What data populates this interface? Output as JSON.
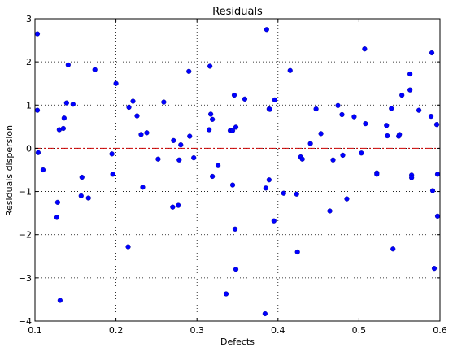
{
  "chart_data": {
    "type": "scatter",
    "title": "Residuals",
    "xlabel": "Defects",
    "ylabel": "Residuals dispersion",
    "xlim": [
      0.1,
      0.6
    ],
    "ylim": [
      -4,
      3
    ],
    "xticks": [
      0.1,
      0.2,
      0.3,
      0.4,
      0.5,
      0.6
    ],
    "xtick_labels": [
      "0.1",
      "0.2",
      "0.3",
      "0.4",
      "0.5",
      "0.6"
    ],
    "yticks": [
      -4,
      -3,
      -2,
      -1,
      0,
      1,
      2,
      3
    ],
    "ytick_labels": [
      "−4",
      "−3",
      "−2",
      "−1",
      "0",
      "1",
      "2",
      "3"
    ],
    "grid": true,
    "reference_line": {
      "y": 0,
      "style": "dash-dot",
      "color": "#cc0000"
    },
    "marker_color": "#0000ff",
    "series": [
      {
        "x": [
          0.103,
          0.103,
          0.104,
          0.11,
          0.127,
          0.128,
          0.13,
          0.131,
          0.135,
          0.136,
          0.139,
          0.141,
          0.147,
          0.157,
          0.158,
          0.166,
          0.174,
          0.195,
          0.196,
          0.2,
          0.215,
          0.216,
          0.221,
          0.226,
          0.231,
          0.233,
          0.238,
          0.252,
          0.259,
          0.27,
          0.271,
          0.277,
          0.278,
          0.28,
          0.29,
          0.291,
          0.296,
          0.315,
          0.316,
          0.317,
          0.319,
          0.319,
          0.326,
          0.336,
          0.341,
          0.344,
          0.344,
          0.346,
          0.347,
          0.348,
          0.348,
          0.359,
          0.384,
          0.385,
          0.386,
          0.389,
          0.389,
          0.39,
          0.395,
          0.396,
          0.407,
          0.415,
          0.423,
          0.424,
          0.428,
          0.43,
          0.44,
          0.447,
          0.453,
          0.464,
          0.468,
          0.474,
          0.479,
          0.48,
          0.485,
          0.494,
          0.503,
          0.507,
          0.508,
          0.522,
          0.522,
          0.534,
          0.535,
          0.54,
          0.542,
          0.549,
          0.55,
          0.553,
          0.563,
          0.563,
          0.565,
          0.565,
          0.574,
          0.589,
          0.59,
          0.591,
          0.593,
          0.596,
          0.597,
          0.597
        ],
        "y": [
          2.65,
          0.88,
          -0.1,
          -0.5,
          -1.6,
          -1.25,
          0.43,
          -3.52,
          0.46,
          0.7,
          1.05,
          1.93,
          1.02,
          -1.1,
          -0.67,
          -1.15,
          1.82,
          -0.13,
          -0.6,
          1.5,
          -2.28,
          0.95,
          1.09,
          0.75,
          0.32,
          -0.9,
          0.36,
          -0.25,
          1.07,
          -1.36,
          0.18,
          -1.32,
          -0.27,
          0.08,
          1.78,
          0.28,
          -0.22,
          0.43,
          1.9,
          0.79,
          0.67,
          -0.65,
          -0.4,
          -3.37,
          0.41,
          -0.85,
          0.41,
          1.23,
          -1.87,
          -2.8,
          0.49,
          1.14,
          -3.83,
          -0.92,
          2.75,
          0.91,
          -0.73,
          0.9,
          -1.68,
          1.12,
          -1.04,
          1.8,
          -1.06,
          -2.4,
          -0.2,
          -0.25,
          0.11,
          0.91,
          0.34,
          -1.45,
          -0.27,
          0.99,
          0.78,
          -0.16,
          -1.17,
          0.73,
          -0.11,
          2.3,
          0.57,
          -0.57,
          -0.6,
          0.53,
          0.29,
          0.92,
          -2.33,
          0.28,
          0.32,
          1.23,
          1.72,
          1.35,
          -0.62,
          -0.68,
          0.88,
          0.74,
          2.21,
          -0.98,
          -2.78,
          0.55,
          -0.6,
          -1.57
        ]
      }
    ]
  }
}
